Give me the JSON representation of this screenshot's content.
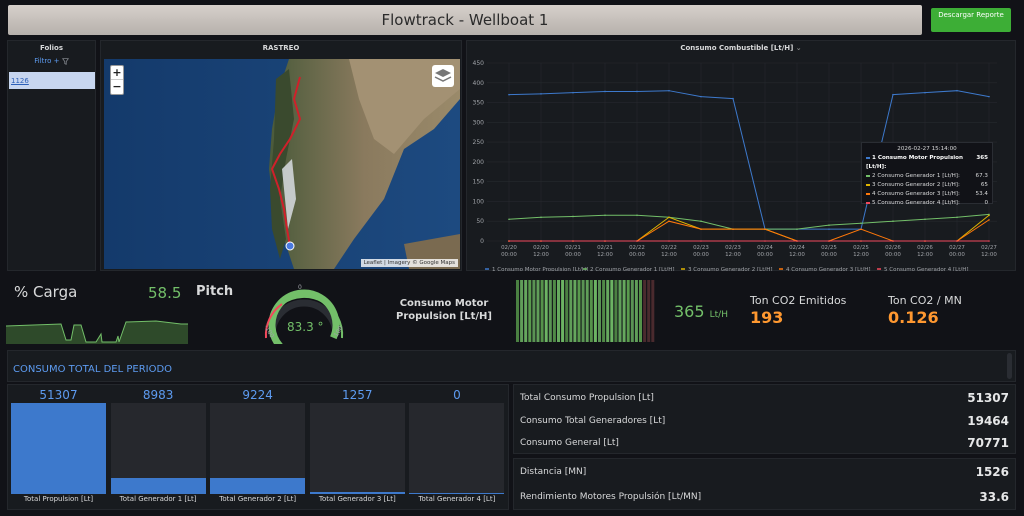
{
  "header": {
    "title": "Flowtrack - Wellboat 1",
    "report_button": "Descargar Reporte"
  },
  "folios": {
    "title": "Folios",
    "filter_label": "Filtro +",
    "selected": "1126"
  },
  "map": {
    "title": "RASTREO",
    "zoom_in": "+",
    "zoom_out": "−",
    "attribution": "Leaflet | Imagery © Google Maps"
  },
  "fuel_chart": {
    "title": "Consumo Combustible [Lt/H]",
    "tooltip": {
      "time": "2026-02-27 15:14:00",
      "rows": [
        {
          "label": "1 Consumo Motor Propulsion [Lt/H]:",
          "value": "365"
        },
        {
          "label": "2 Consumo Generador 1 [Lt/H]:",
          "value": "67.3"
        },
        {
          "label": "3 Consumo Generador 2 [Lt/H]:",
          "value": "65"
        },
        {
          "label": "4 Consumo Generador 3 [Lt/H]:",
          "value": "53.4"
        },
        {
          "label": "5 Consumo Generador 4 [Lt/H]:",
          "value": "0"
        }
      ]
    }
  },
  "chart_data": {
    "type": "line",
    "x_ticks": [
      "02/20 00:00",
      "02/20 12:00",
      "02/21 00:00",
      "02/21 12:00",
      "02/22 00:00",
      "02/22 12:00",
      "02/23 00:00",
      "02/23 12:00",
      "02/24 00:00",
      "02/24 12:00",
      "02/25 00:00",
      "02/25 12:00",
      "02/26 00:00",
      "02/26 12:00",
      "02/27 00:00",
      "02/27 12:00"
    ],
    "ylim": [
      0,
      450
    ],
    "y_ticks": [
      0,
      50,
      100,
      150,
      200,
      250,
      300,
      350,
      400,
      450
    ],
    "series": [
      {
        "name": "1 Consumo Motor Propulsion [Lt/H]",
        "color": "#3d79cc",
        "values": [
          370,
          372,
          375,
          378,
          378,
          380,
          365,
          360,
          30,
          30,
          30,
          30,
          370,
          375,
          380,
          365
        ]
      },
      {
        "name": "2 Consumo Generador 1 [Lt/H]",
        "color": "#73bf69",
        "values": [
          55,
          60,
          62,
          65,
          65,
          60,
          50,
          30,
          30,
          30,
          40,
          45,
          50,
          55,
          60,
          67.3
        ]
      },
      {
        "name": "3 Consumo Generador 2 [Lt/H]",
        "color": "#e0b400",
        "values": [
          0,
          0,
          0,
          0,
          0,
          60,
          30,
          30,
          30,
          0,
          0,
          0,
          0,
          0,
          0,
          65
        ]
      },
      {
        "name": "4 Consumo Generador 3 [Lt/H]",
        "color": "#ff780a",
        "values": [
          0,
          0,
          0,
          0,
          0,
          50,
          30,
          30,
          30,
          0,
          0,
          30,
          0,
          0,
          0,
          53.4
        ]
      },
      {
        "name": "5 Consumo Generador 4 [Lt/H]",
        "color": "#f2495c",
        "values": [
          0,
          0,
          0,
          0,
          0,
          0,
          0,
          0,
          0,
          0,
          0,
          0,
          0,
          0,
          0,
          0
        ]
      }
    ]
  },
  "carga": {
    "label": "% Carga",
    "value": "58.5"
  },
  "pitch": {
    "label": "Pitch",
    "value": "83.3 °",
    "min": "-100",
    "max": "100",
    "zero": "0",
    "level": 0.92
  },
  "consumo_motor": {
    "label": "Consumo Motor Propulsion [Lt/H]",
    "value": "365",
    "unit": "Lt/H"
  },
  "co2": {
    "label": "Ton CO2 Emitidos",
    "value": "193"
  },
  "co2_mn": {
    "label": "Ton CO2 / MN",
    "value": "0.126"
  },
  "periodo": {
    "title": "CONSUMO TOTAL DEL PERIODO",
    "bars": [
      {
        "label": "Total Propulsion [Lt]",
        "value": "51307",
        "num": 51307
      },
      {
        "label": "Total Generador 1 [Lt]",
        "value": "8983",
        "num": 8983
      },
      {
        "label": "Total Generador 2 [Lt]",
        "value": "9224",
        "num": 9224
      },
      {
        "label": "Total Generador 3 [Lt]",
        "value": "1257",
        "num": 1257
      },
      {
        "label": "Total Generador 4 [Lt]",
        "value": "0",
        "num": 0
      }
    ],
    "bar_max": 51307
  },
  "stats": [
    {
      "label": "Total Consumo Propulsion [Lt]",
      "value": "51307"
    },
    {
      "label": "Consumo Total Generadores [Lt]",
      "value": "19464"
    },
    {
      "label": "Consumo General [Lt]",
      "value": "70771"
    },
    {
      "label": "Distancia [MN]",
      "value": "1526"
    },
    {
      "label": "Rendimiento Motores Propulsión [Lt/MN]",
      "value": "33.6"
    }
  ],
  "colors": {
    "accent_blue": "#5d9bf0",
    "green": "#73bf69",
    "orange": "#ff9830",
    "report_green": "#3dae36"
  }
}
